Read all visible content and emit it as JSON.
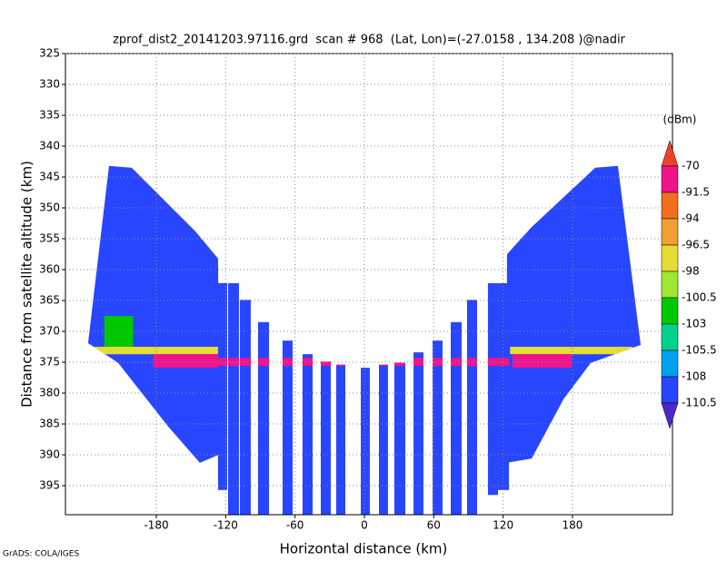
{
  "chart_data": {
    "type": "shaded",
    "title": "zprof_dist2_20141203.97116.grd  scan # 968  (Lat, Lon)=(-27.0158 , 134.208 )@nadir",
    "xlabel": "Horizontal distance (km)",
    "ylabel": "Distance from satellite altitude (km)",
    "footer": "GrADS: COLA/IGES",
    "xlim": [
      -258.6,
      266.5
    ],
    "ylim": [
      325,
      399.7
    ],
    "xticks": [
      -180,
      -120,
      -60,
      0,
      60,
      120,
      180
    ],
    "yticks": [
      325,
      330,
      335,
      340,
      345,
      350,
      355,
      360,
      365,
      370,
      375,
      380,
      385,
      390,
      395
    ],
    "grid": true,
    "colorbar": {
      "unit": "(dBm)",
      "levels": [
        -70,
        -91.5,
        -94,
        -96.5,
        -98,
        -100.5,
        -103,
        -105.5,
        -108,
        -110.5
      ],
      "colors": [
        "#f0402c",
        "#f0148c",
        "#f06e1e",
        "#f0a032",
        "#e6dc32",
        "#a0e632",
        "#00c800",
        "#00d28c",
        "#00a0f0",
        "#2846ff",
        "#5028c8"
      ]
    },
    "areas": [
      {
        "x": [
          -220.9,
          -201.3,
          -146.2,
          -126.6,
          -125,
          -142.3,
          -169.8,
          -213,
          -239
        ],
        "y": [
          343.2,
          343.5,
          353.8,
          358.2,
          389.9,
          391.3,
          385.4,
          375.1,
          371.9
        ],
        "value": -109
      },
      {
        "x": [
          219.3,
          199.7,
          144.7,
          123.4,
          122.6,
          144.7,
          172.2,
          195.8,
          239
        ],
        "y": [
          343.2,
          343.5,
          353.1,
          357.5,
          391.3,
          390.6,
          381,
          375.1,
          372.2
        ],
        "value": -109
      }
    ],
    "columns": [
      {
        "x": [
          -126.6,
          -118.7
        ],
        "y": [
          362.2,
          395.7
        ],
        "value": -109
      },
      {
        "x": [
          -117.9,
          -108.5
        ],
        "y": [
          362.2,
          399.7
        ],
        "value": -109
      },
      {
        "x": [
          -107.7,
          -98.3
        ],
        "y": [
          364.9,
          399.7
        ],
        "value": -109
      },
      {
        "x": [
          -92,
          -82.5
        ],
        "y": [
          368.5,
          399.7
        ],
        "value": -109
      },
      {
        "x": [
          -70.8,
          -62.1
        ],
        "y": [
          371.5,
          399.7
        ],
        "value": -109
      },
      {
        "x": [
          -53.5,
          -44.8
        ],
        "y": [
          373.7,
          399.7
        ],
        "value": -109
      },
      {
        "x": [
          -37.7,
          -29.1
        ],
        "y": [
          374.9,
          399.7
        ],
        "value": -109
      },
      {
        "x": [
          -24.4,
          -16.5
        ],
        "y": [
          375.4,
          399.7
        ],
        "value": -109
      },
      {
        "x": [
          -3.1,
          4.7
        ],
        "y": [
          375.9,
          399.7
        ],
        "value": -109
      },
      {
        "x": [
          12.6,
          20.4
        ],
        "y": [
          375.4,
          399.7
        ],
        "value": -109
      },
      {
        "x": [
          25.9,
          35.4
        ],
        "y": [
          375.1,
          399.7
        ],
        "value": -109
      },
      {
        "x": [
          42.5,
          51.1
        ],
        "y": [
          373.4,
          399.7
        ],
        "value": -109
      },
      {
        "x": [
          59,
          67.6
        ],
        "y": [
          371.5,
          399.7
        ],
        "value": -109
      },
      {
        "x": [
          74.7,
          84.1
        ],
        "y": [
          368.5,
          399.7
        ],
        "value": -109
      },
      {
        "x": [
          88.8,
          97.5
        ],
        "y": [
          364.9,
          399.7
        ],
        "value": -109
      },
      {
        "x": [
          106.9,
          115.6
        ],
        "y": [
          362.2,
          396.5
        ],
        "value": -109
      },
      {
        "x": [
          115.6,
          125
        ],
        "y": [
          362.2,
          395.7
        ],
        "value": -109
      }
    ],
    "bands": [
      {
        "x": [
          -235,
          -126.6
        ],
        "y": [
          372.5,
          373.7
        ],
        "value": -97
      },
      {
        "x": [
          126,
          232
        ],
        "y": [
          372.5,
          373.7
        ],
        "value": -97
      },
      {
        "x": [
          -225,
          -200
        ],
        "y": [
          367.5,
          372.5
        ],
        "value": -102
      },
      {
        "x": [
          -182.7,
          -126.6
        ],
        "y": [
          373.7,
          375.9
        ],
        "value": -85
      },
      {
        "x": [
          128.1,
          179.2
        ],
        "y": [
          373.7,
          375.9
        ],
        "value": -85
      },
      {
        "x": [
          -126.6,
          125
        ],
        "y": [
          374.3,
          375.6
        ],
        "value": -85
      }
    ]
  }
}
